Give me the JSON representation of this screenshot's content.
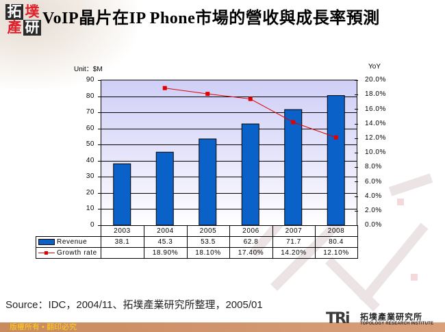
{
  "header": {
    "logo_chars": [
      "拓",
      "墣",
      "產",
      "研"
    ],
    "title": "VoIP晶片在IP Phone市場的營收與成長率預測"
  },
  "chart_data": {
    "type": "bar",
    "title": "VoIP晶片在IP Phone市場的營收與成長率預測",
    "categories": [
      "2003",
      "2004",
      "2005",
      "2006",
      "2007",
      "2008"
    ],
    "series": [
      {
        "name": "Revenue",
        "type": "bar",
        "axis": "left",
        "color": "#0a62c9",
        "values": [
          38.1,
          45.3,
          53.5,
          62.8,
          71.7,
          80.4
        ],
        "labels": [
          "38.1",
          "45.3",
          "53.5",
          "62.8",
          "71.7",
          "80.4"
        ]
      },
      {
        "name": "Growth rate",
        "type": "line",
        "axis": "right",
        "color": "#e00000",
        "values": [
          null,
          18.9,
          18.1,
          17.4,
          14.2,
          12.1
        ],
        "labels": [
          "",
          "18.90%",
          "18.10%",
          "17.40%",
          "14.20%",
          "12.10%"
        ]
      }
    ],
    "ylabel": "Unit：$M",
    "ylabel_right": "YoY",
    "ylim": [
      0,
      90
    ],
    "ylim_right": [
      0,
      20
    ],
    "yticks": [
      "0",
      "10",
      "20",
      "30",
      "40",
      "50",
      "60",
      "70",
      "80",
      "90"
    ],
    "yticks_right": [
      "0.0%",
      "2.0%",
      "4.0%",
      "6.0%",
      "8.0%",
      "10.0%",
      "12.0%",
      "14.0%",
      "16.0%",
      "18.0%",
      "20.0%"
    ],
    "grid": true,
    "legend_position": "data-table"
  },
  "source": "Source：IDC，2004/11、拓墣產業研究所整理，2005/01",
  "footer": {
    "copyright": "版權所有 • 翻印必究",
    "brand_mark": "TRi",
    "brand_cn": "拓墣產業研究所",
    "brand_en": "TOPOLOGY RESEARCH INSTITUTE"
  },
  "colors": {
    "bar": "#0a62c9",
    "line": "#e00000",
    "plot_bg_top": "#cfcff7",
    "footer_bar": "#c98a5e",
    "copyright_text": "#ffd21c"
  }
}
